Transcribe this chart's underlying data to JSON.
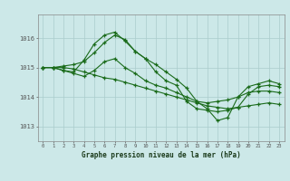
{
  "background_color": "#cce8e8",
  "grid_color": "#aacccc",
  "line_color": "#1a6b1a",
  "title": "Graphe pression niveau de la mer (hPa)",
  "xlabel_ticks": [
    0,
    1,
    2,
    3,
    4,
    5,
    6,
    7,
    8,
    9,
    10,
    11,
    12,
    13,
    14,
    15,
    16,
    17,
    18,
    19,
    20,
    21,
    22,
    23
  ],
  "yticks": [
    1013,
    1014,
    1015,
    1016
  ],
  "ylim": [
    1012.5,
    1016.8
  ],
  "xlim": [
    -0.5,
    23.5
  ],
  "series1": [
    1015.0,
    1015.0,
    1014.9,
    1014.8,
    1014.7,
    1014.9,
    1015.2,
    1015.3,
    1015.0,
    1014.8,
    1014.55,
    1014.4,
    1014.3,
    1014.15,
    1014.0,
    1013.85,
    1013.8,
    1013.85,
    1013.9,
    1014.0,
    1014.15,
    1014.2,
    1014.2,
    1014.15
  ],
  "series2": [
    1015.0,
    1015.0,
    1015.0,
    1014.95,
    1014.85,
    1014.75,
    1014.65,
    1014.6,
    1014.5,
    1014.4,
    1014.3,
    1014.2,
    1014.1,
    1014.0,
    1013.9,
    1013.8,
    1013.7,
    1013.65,
    1013.6,
    1013.65,
    1013.7,
    1013.75,
    1013.8,
    1013.75
  ],
  "series3": [
    1015.0,
    1015.0,
    1014.9,
    1014.85,
    1015.25,
    1015.8,
    1016.1,
    1016.2,
    1015.9,
    1015.55,
    1015.3,
    1014.85,
    1014.55,
    1014.4,
    1013.85,
    1013.6,
    1013.55,
    1013.5,
    1013.55,
    1013.65,
    1014.1,
    1014.35,
    1014.4,
    1014.35
  ],
  "series4": [
    1015.0,
    1015.0,
    1015.05,
    1015.1,
    1015.2,
    1015.5,
    1015.85,
    1016.1,
    1015.95,
    1015.55,
    1015.3,
    1015.1,
    1014.85,
    1014.6,
    1014.3,
    1013.85,
    1013.6,
    1013.2,
    1013.3,
    1014.0,
    1014.35,
    1014.45,
    1014.55,
    1014.45
  ]
}
